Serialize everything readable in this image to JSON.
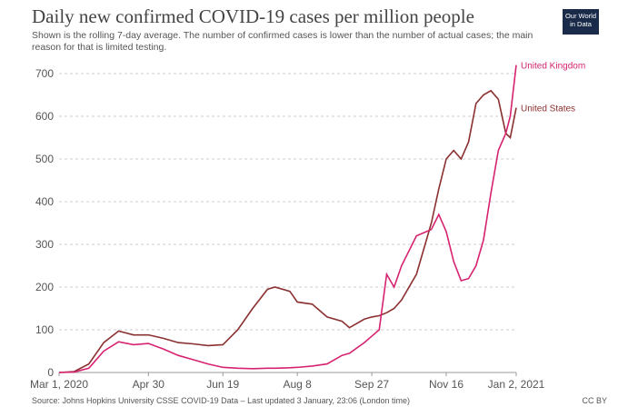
{
  "chart_data": {
    "type": "line",
    "title": "Daily new confirmed COVID-19 cases per million people",
    "subtitle": "Shown is the rolling 7-day average. The number of confirmed cases is lower than the number of actual cases; the main reason for that is limited testing.",
    "source": "Source: Johns Hopkins University CSSE COVID-19 Data – Last updated 3 January, 23:06 (London time)",
    "license": "CC BY",
    "logo": "Our World in Data",
    "x": [
      "2020-03-01",
      "2020-03-11",
      "2020-03-21",
      "2020-03-31",
      "2020-04-10",
      "2020-04-20",
      "2020-04-30",
      "2020-05-10",
      "2020-05-20",
      "2020-05-30",
      "2020-06-09",
      "2020-06-19",
      "2020-06-29",
      "2020-07-09",
      "2020-07-19",
      "2020-07-24",
      "2020-08-03",
      "2020-08-08",
      "2020-08-18",
      "2020-08-28",
      "2020-09-07",
      "2020-09-12",
      "2020-09-22",
      "2020-09-27",
      "2020-10-02",
      "2020-10-07",
      "2020-10-12",
      "2020-10-17",
      "2020-10-27",
      "2020-11-06",
      "2020-11-11",
      "2020-11-16",
      "2020-11-21",
      "2020-11-26",
      "2020-12-01",
      "2020-12-06",
      "2020-12-11",
      "2020-12-16",
      "2020-12-21",
      "2020-12-26",
      "2020-12-29",
      "2021-01-02"
    ],
    "series": [
      {
        "name": "United States",
        "color": "#8b3030",
        "values": [
          0,
          2,
          20,
          70,
          97,
          88,
          88,
          80,
          70,
          67,
          63,
          65,
          100,
          150,
          195,
          200,
          190,
          165,
          160,
          130,
          120,
          105,
          125,
          130,
          133,
          140,
          150,
          170,
          230,
          350,
          430,
          500,
          520,
          500,
          540,
          630,
          650,
          660,
          640,
          560,
          550,
          620
        ]
      },
      {
        "name": "United Kingdom",
        "color": "#d6226f",
        "values": [
          0,
          1,
          10,
          50,
          72,
          65,
          68,
          55,
          40,
          30,
          20,
          12,
          10,
          9,
          10,
          10,
          11,
          12,
          15,
          20,
          40,
          45,
          70,
          85,
          100,
          230,
          200,
          250,
          320,
          335,
          370,
          330,
          260,
          215,
          220,
          250,
          310,
          420,
          520,
          560,
          600,
          720
        ]
      }
    ],
    "xlim": [
      "2020-03-01",
      "2021-01-02"
    ],
    "xticks": [
      {
        "value": "2020-03-01",
        "label": "Mar 1, 2020"
      },
      {
        "value": "2020-04-30",
        "label": "Apr 30"
      },
      {
        "value": "2020-06-19",
        "label": "Jun 19"
      },
      {
        "value": "2020-08-08",
        "label": "Aug 8"
      },
      {
        "value": "2020-09-27",
        "label": "Sep 27"
      },
      {
        "value": "2020-11-16",
        "label": "Nov 16"
      },
      {
        "value": "2021-01-02",
        "label": "Jan 2, 2021"
      }
    ],
    "ylim": [
      0,
      700
    ],
    "yticks": [
      0,
      100,
      200,
      300,
      400,
      500,
      600,
      700
    ],
    "grid": true
  }
}
